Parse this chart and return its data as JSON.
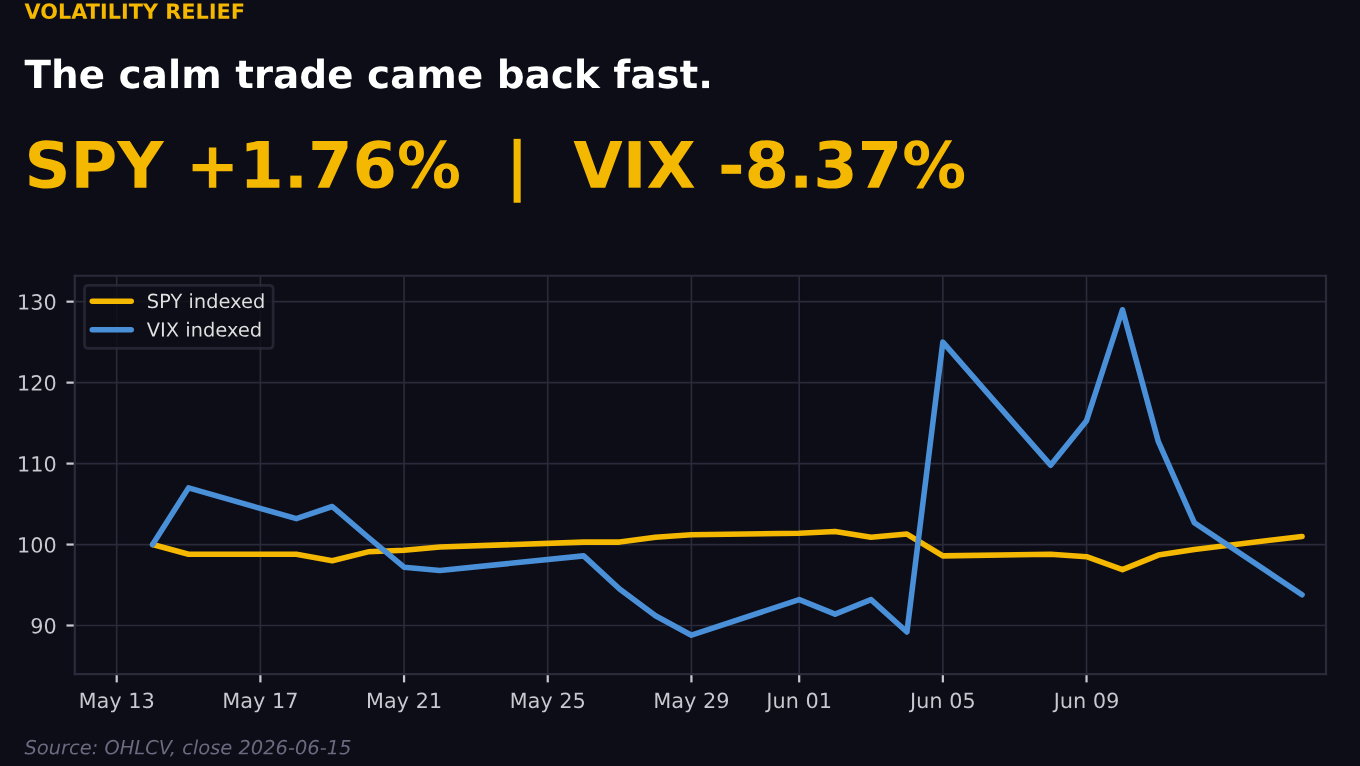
{
  "chart_data": {
    "type": "line",
    "title": "The calm trade came back fast.",
    "subtitle": "SPY +1.76%  |  VIX -8.37%",
    "annotations": [
      "VOLATILITY RELIEF",
      "Source: OHLCV, close 2026-06-15"
    ],
    "x": [
      "2026-05-14",
      "2026-05-15",
      "2026-05-18",
      "2026-05-19",
      "2026-05-20",
      "2026-05-21",
      "2026-05-22",
      "2026-05-26",
      "2026-05-27",
      "2026-05-28",
      "2026-05-29",
      "2026-06-01",
      "2026-06-02",
      "2026-06-03",
      "2026-06-04",
      "2026-06-05",
      "2026-06-08",
      "2026-06-09",
      "2026-06-10",
      "2026-06-11",
      "2026-06-12",
      "2026-06-15"
    ],
    "series": [
      {
        "name": "SPY indexed",
        "color": "#f5b800",
        "values": [
          100,
          98.8,
          98.8,
          98.0,
          99.1,
          99.3,
          99.7,
          100.3,
          100.3,
          100.9,
          101.2,
          101.4,
          101.6,
          100.9,
          101.3,
          98.6,
          98.8,
          98.5,
          96.9,
          98.7,
          99.4,
          101.0
        ]
      },
      {
        "name": "VIX indexed",
        "color": "#4a90d9",
        "values": [
          100,
          107.0,
          103.2,
          104.7,
          100.9,
          97.2,
          96.8,
          98.6,
          94.5,
          91.2,
          88.8,
          93.2,
          91.4,
          93.2,
          89.2,
          125.0,
          109.8,
          115.3,
          129.0,
          112.7,
          102.7,
          93.8
        ]
      }
    ],
    "xlim": [
      "2026-05-11T20:00",
      "2026-06-15T16:00"
    ],
    "xticks": [
      {
        "value": "2026-05-13",
        "label": "May 13"
      },
      {
        "value": "2026-05-17",
        "label": "May 17"
      },
      {
        "value": "2026-05-21",
        "label": "May 21"
      },
      {
        "value": "2026-05-25",
        "label": "May 25"
      },
      {
        "value": "2026-05-29",
        "label": "May 29"
      },
      {
        "value": "2026-06-01",
        "label": "Jun 01"
      },
      {
        "value": "2026-06-05",
        "label": "Jun 05"
      },
      {
        "value": "2026-06-09",
        "label": "Jun 09"
      }
    ],
    "ylim": [
      84,
      133.2
    ],
    "yticks": [
      90,
      100,
      110,
      120,
      130
    ],
    "grid": true,
    "legend": "top left",
    "marker": "none",
    "line_style": "solid"
  }
}
